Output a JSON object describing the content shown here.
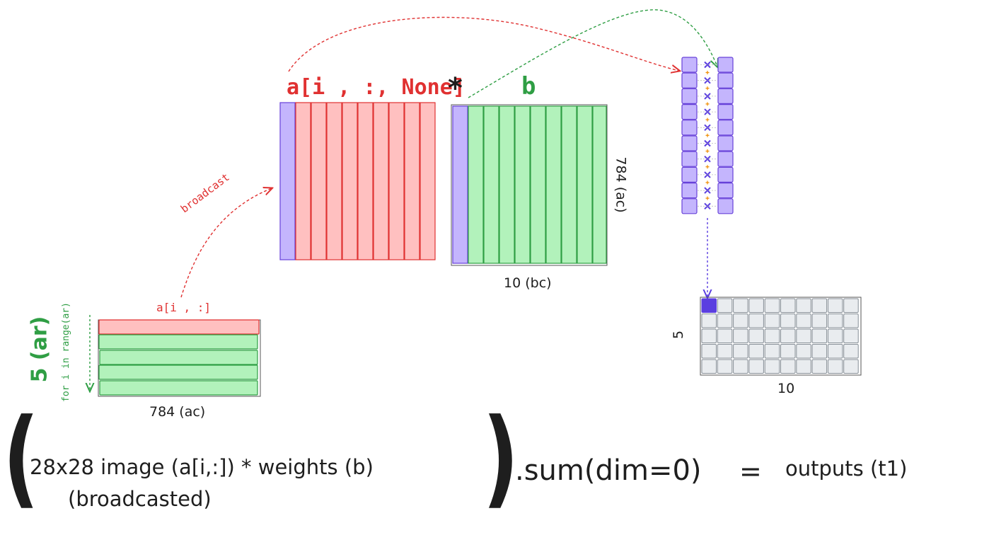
{
  "colors": {
    "red_fill": "#ffc0c0",
    "red_stroke": "#e03131",
    "green_fill": "#b2f2bb",
    "green_stroke": "#2f9e44",
    "purple_fill": "#c4b5fd",
    "purple_stroke": "#6741d9",
    "grid_fill": "#e9ecef",
    "grid_stroke": "#868e96",
    "dark_purple": "#5b3fe0",
    "ink": "#1e1e1e"
  },
  "labels": {
    "a_slice_broadcast": "a[i , :, None]",
    "star": "*",
    "b": "b",
    "bc_size": "10 (bc)",
    "ac_vertical": "784 (ac)",
    "broadcast": "broadcast",
    "a_row": "a[i , :]",
    "ar_size": "5 (ar)",
    "loop": "for i in range(ar)",
    "ac_size": "784 (ac)",
    "out_rows": "5",
    "out_cols": "10"
  },
  "formula": {
    "open_paren": "(",
    "line1": "28x28 image (a[i,:]) * weights (b)",
    "line2": "(broadcasted)",
    "close_paren": ")",
    "sum": ".sum(dim=0)",
    "equals": "=",
    "result": "outputs (t1)"
  },
  "shapes": {
    "icon_cross": "x-icon",
    "icon_plus": "plus-icon"
  }
}
